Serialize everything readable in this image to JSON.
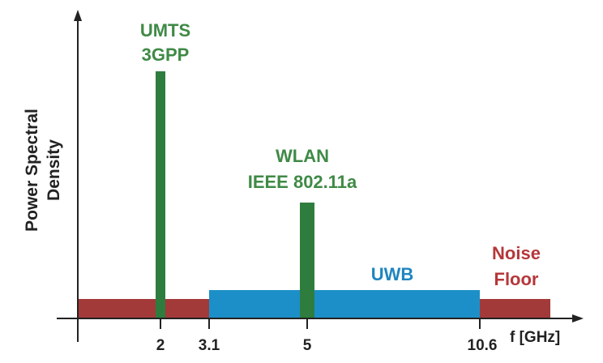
{
  "colors": {
    "noise": "#A33A3A",
    "uwb": "#1C8FC8",
    "narrowband": "#2E7D3E",
    "narrowband_text": "#3F8A46",
    "noise_text": "#B5373A",
    "uwb_text": "#1E86C0",
    "axis": "#222222"
  },
  "y_axis_label_line1": "Power Spectral",
  "y_axis_label_line2": "Density",
  "x_axis_label": "f [GHz]",
  "ticks": [
    "2",
    "3.1",
    "5",
    "10.6"
  ],
  "umts": {
    "line1": "UMTS",
    "line2": "3GPP"
  },
  "wlan": {
    "line1": "WLAN",
    "line2": "IEEE 802.11a"
  },
  "uwb_label": "UWB",
  "noise": {
    "line1": "Noise",
    "line2": "Floor"
  }
}
